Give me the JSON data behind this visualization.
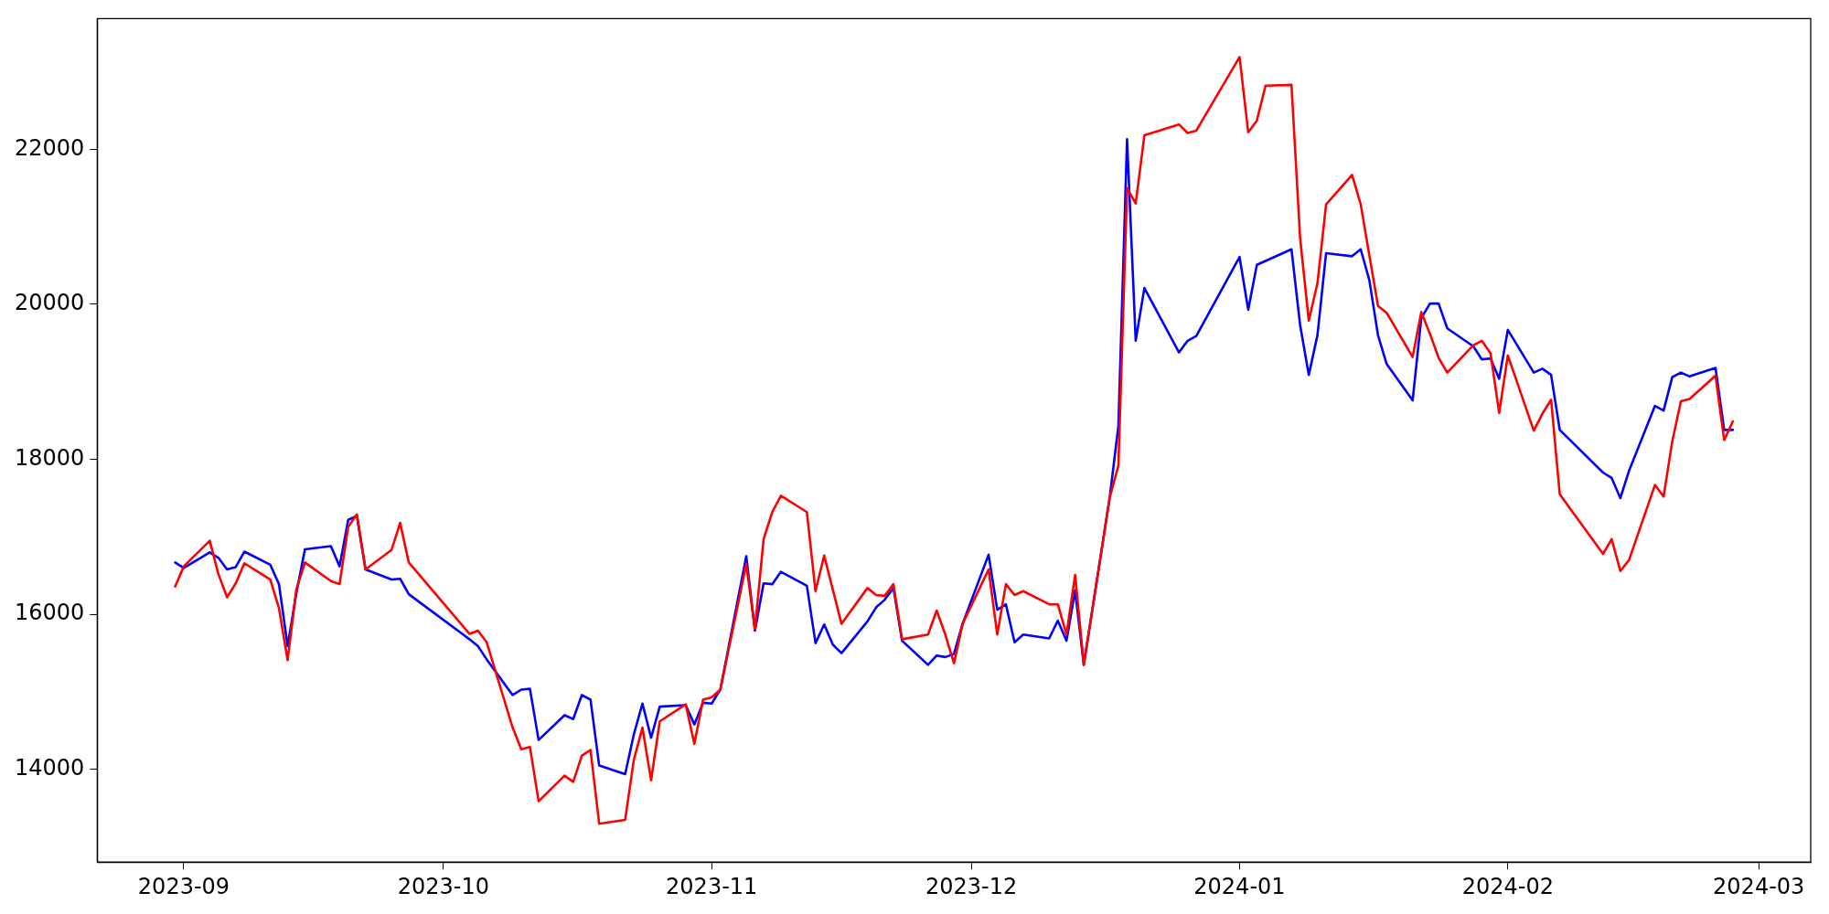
{
  "chart_data": {
    "type": "line",
    "marker": "none",
    "line_style": "solid",
    "x": [
      "2023-08-31",
      "2023-09-01",
      "2023-09-04",
      "2023-09-05",
      "2023-09-06",
      "2023-09-07",
      "2023-09-08",
      "2023-09-11",
      "2023-09-12",
      "2023-09-13",
      "2023-09-14",
      "2023-09-15",
      "2023-09-18",
      "2023-09-19",
      "2023-09-20",
      "2023-09-21",
      "2023-09-22",
      "2023-09-25",
      "2023-09-26",
      "2023-09-27",
      "2023-10-04",
      "2023-10-05",
      "2023-10-06",
      "2023-10-09",
      "2023-10-10",
      "2023-10-11",
      "2023-10-12",
      "2023-10-15",
      "2023-10-16",
      "2023-10-17",
      "2023-10-18",
      "2023-10-19",
      "2023-10-22",
      "2023-10-23",
      "2023-10-24",
      "2023-10-25",
      "2023-10-26",
      "2023-10-29",
      "2023-10-30",
      "2023-10-31",
      "2023-11-01",
      "2023-11-02",
      "2023-11-05",
      "2023-11-06",
      "2023-11-07",
      "2023-11-08",
      "2023-11-09",
      "2023-11-12",
      "2023-11-13",
      "2023-11-14",
      "2023-11-15",
      "2023-11-16",
      "2023-11-19",
      "2023-11-20",
      "2023-11-21",
      "2023-11-22",
      "2023-11-23",
      "2023-11-26",
      "2023-11-27",
      "2023-11-28",
      "2023-11-29",
      "2023-11-30",
      "2023-12-03",
      "2023-12-04",
      "2023-12-05",
      "2023-12-06",
      "2023-12-07",
      "2023-12-10",
      "2023-12-11",
      "2023-12-12",
      "2023-12-13",
      "2023-12-14",
      "2023-12-17",
      "2023-12-18",
      "2023-12-19",
      "2023-12-20",
      "2023-12-21",
      "2023-12-25",
      "2023-12-26",
      "2023-12-27",
      "2024-01-01",
      "2024-01-02",
      "2024-01-03",
      "2024-01-04",
      "2024-01-07",
      "2024-01-08",
      "2024-01-09",
      "2024-01-10",
      "2024-01-11",
      "2024-01-14",
      "2024-01-15",
      "2024-01-16",
      "2024-01-17",
      "2024-01-18",
      "2024-01-21",
      "2024-01-22",
      "2024-01-23",
      "2024-01-24",
      "2024-01-25",
      "2024-01-28",
      "2024-01-29",
      "2024-01-30",
      "2024-01-31",
      "2024-02-01",
      "2024-02-04",
      "2024-02-05",
      "2024-02-06",
      "2024-02-07",
      "2024-02-12",
      "2024-02-13",
      "2024-02-14",
      "2024-02-15",
      "2024-02-18",
      "2024-02-19",
      "2024-02-20",
      "2024-02-21",
      "2024-02-22",
      "2024-02-25",
      "2024-02-26",
      "2024-02-27"
    ],
    "series": [
      {
        "color": "#ff0000",
        "values": [
          16360,
          16620,
          16950,
          16520,
          16220,
          16400,
          16660,
          16450,
          16080,
          15410,
          16320,
          16670,
          16430,
          16390,
          17130,
          17290,
          16580,
          16830,
          17180,
          16670,
          15750,
          15790,
          15640,
          14540,
          14260,
          14290,
          13590,
          13920,
          13840,
          14180,
          14250,
          13300,
          13350,
          14120,
          14540,
          13860,
          14620,
          14840,
          14330,
          14900,
          14930,
          15030,
          16650,
          15810,
          16970,
          17320,
          17530,
          17320,
          16300,
          16760,
          16320,
          15880,
          16340,
          16250,
          16240,
          16390,
          15680,
          15740,
          16050,
          15740,
          15370,
          15880,
          16580,
          15740,
          16390,
          16250,
          16300,
          16130,
          16130,
          15740,
          16510,
          15350,
          17510,
          17920,
          21500,
          21300,
          22180,
          22320,
          22210,
          22240,
          23190,
          22220,
          22370,
          22820,
          22830,
          20850,
          19790,
          20270,
          21290,
          21670,
          21290,
          20630,
          19980,
          19890,
          19320,
          19900,
          19620,
          19310,
          19120,
          19470,
          19530,
          19370,
          18600,
          19340,
          18370,
          18590,
          18770,
          17550,
          16780,
          16970,
          16560,
          16700,
          17670,
          17520,
          18230,
          18750,
          18780,
          19080,
          18250,
          18490
        ]
      },
      {
        "color": "#0000ff",
        "values": [
          16670,
          16600,
          16800,
          16730,
          16580,
          16610,
          16810,
          16640,
          16390,
          15590,
          16270,
          16840,
          16880,
          16620,
          17220,
          17270,
          16580,
          16450,
          16460,
          16260,
          15680,
          15590,
          15420,
          14960,
          15030,
          15040,
          14380,
          14700,
          14650,
          14960,
          14900,
          14050,
          13940,
          14450,
          14850,
          14410,
          14810,
          14830,
          14580,
          14860,
          14850,
          15030,
          16750,
          15790,
          16400,
          16390,
          16550,
          16370,
          15630,
          15870,
          15610,
          15500,
          15910,
          16090,
          16190,
          16340,
          15660,
          15350,
          15470,
          15450,
          15490,
          15880,
          16770,
          16060,
          16130,
          15640,
          15740,
          15690,
          15920,
          15660,
          16310,
          15350,
          17510,
          18430,
          22130,
          19530,
          20210,
          19380,
          19530,
          19590,
          20610,
          19930,
          20510,
          20560,
          20710,
          19730,
          19090,
          19600,
          20660,
          20620,
          20710,
          20310,
          19600,
          19230,
          18760,
          19820,
          20010,
          20010,
          19690,
          19460,
          19290,
          19300,
          19040,
          19670,
          19120,
          19170,
          19090,
          18380,
          17830,
          17760,
          17500,
          17850,
          18690,
          18630,
          19060,
          19120,
          19070,
          19180,
          18380,
          18380
        ]
      }
    ],
    "xlim": [
      "2023-08-22",
      "2024-03-07"
    ],
    "xticks": [
      {
        "value": "2023-09-01",
        "label": "2023-09"
      },
      {
        "value": "2023-10-01",
        "label": "2023-10"
      },
      {
        "value": "2023-11-01",
        "label": "2023-11"
      },
      {
        "value": "2023-12-01",
        "label": "2023-12"
      },
      {
        "value": "2024-01-01",
        "label": "2024-01"
      },
      {
        "value": "2024-02-01",
        "label": "2024-02"
      },
      {
        "value": "2024-03-01",
        "label": "2024-03"
      }
    ],
    "ylim": [
      12805,
      23685
    ],
    "yticks": [
      14000,
      16000,
      18000,
      20000,
      22000
    ]
  }
}
